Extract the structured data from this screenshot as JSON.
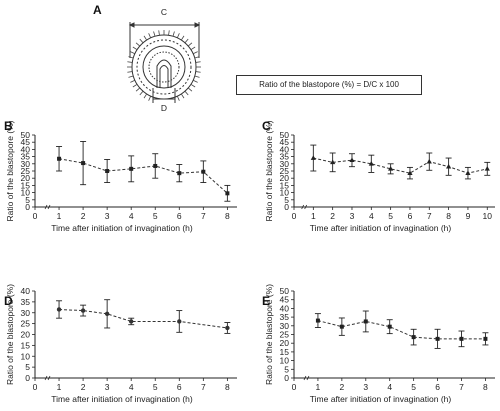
{
  "schematic": {
    "letter": "A",
    "label_c": "C",
    "label_d": "D",
    "formula": "Ratio of the blastopore (%) =  D/C x 100"
  },
  "chart_data": [
    {
      "panel": "B",
      "type": "line",
      "xlabel": "Time after initiation of invagination (h)",
      "ylabel": "Ratio of the blastopore (%)",
      "xlim": [
        0,
        8.4
      ],
      "ylim": [
        0,
        50
      ],
      "xticks": [
        0,
        1,
        2,
        3,
        4,
        5,
        6,
        7,
        8
      ],
      "yticks": [
        0,
        5,
        10,
        15,
        20,
        25,
        30,
        35,
        40,
        45,
        50
      ],
      "x": [
        1,
        2,
        3,
        4,
        5,
        6,
        7,
        8
      ],
      "values": [
        33.5,
        30.5,
        25,
        26.5,
        28.5,
        23.5,
        24.5,
        9.5
      ],
      "error": [
        8.5,
        15,
        8,
        9,
        8.5,
        6,
        7.5,
        5.5
      ],
      "marker": "square"
    },
    {
      "panel": "C",
      "type": "line",
      "xlabel": "Time after initiation of invagination (h)",
      "ylabel": "Ratio of the blastopore (%)",
      "xlim": [
        0,
        10.4
      ],
      "ylim": [
        0,
        50
      ],
      "xticks": [
        0,
        1,
        2,
        3,
        4,
        5,
        6,
        7,
        8,
        9,
        10
      ],
      "yticks": [
        0,
        5,
        10,
        15,
        20,
        25,
        30,
        35,
        40,
        45,
        50
      ],
      "x": [
        1,
        2,
        3,
        4,
        5,
        6,
        7,
        8,
        9,
        10
      ],
      "values": [
        34,
        31,
        32.5,
        30,
        26.5,
        23.5,
        31.5,
        28,
        23.5,
        26.5
      ],
      "error": [
        9,
        6.5,
        4.5,
        6,
        3.5,
        4,
        6,
        6,
        4,
        4.5
      ],
      "marker": "triangle"
    },
    {
      "panel": "D",
      "type": "line",
      "xlabel": "Time after initiation of invagination (h)",
      "ylabel": "Ratio of the blastopore (%)",
      "xlim": [
        0,
        8.4
      ],
      "ylim": [
        0,
        40
      ],
      "xticks": [
        0,
        1,
        2,
        3,
        4,
        5,
        6,
        7,
        8
      ],
      "yticks": [
        0,
        5,
        10,
        15,
        20,
        25,
        30,
        35,
        40
      ],
      "x": [
        1,
        2,
        3,
        4,
        6,
        8
      ],
      "values": [
        31.5,
        31,
        29.5,
        26,
        26,
        23
      ],
      "error": [
        4,
        2.5,
        6.5,
        1.5,
        5,
        2.5
      ],
      "marker": "circle"
    },
    {
      "panel": "E",
      "type": "line",
      "xlabel": "Time after initiation of invagination (h)",
      "ylabel": "Ratio of the blastopore (%)",
      "xlim": [
        0,
        8.4
      ],
      "ylim": [
        0,
        50
      ],
      "xticks": [
        0,
        1,
        2,
        3,
        4,
        5,
        6,
        7,
        8
      ],
      "yticks": [
        0,
        5,
        10,
        15,
        20,
        25,
        30,
        35,
        40,
        45,
        50
      ],
      "x": [
        1,
        2,
        3,
        4,
        5,
        6,
        7,
        8
      ],
      "values": [
        33,
        29.5,
        32.5,
        29.5,
        23.5,
        22.5,
        22.5,
        22.5
      ],
      "error": [
        4,
        5,
        6,
        4,
        4.5,
        5.5,
        4.5,
        3.5
      ],
      "marker": "square"
    }
  ]
}
